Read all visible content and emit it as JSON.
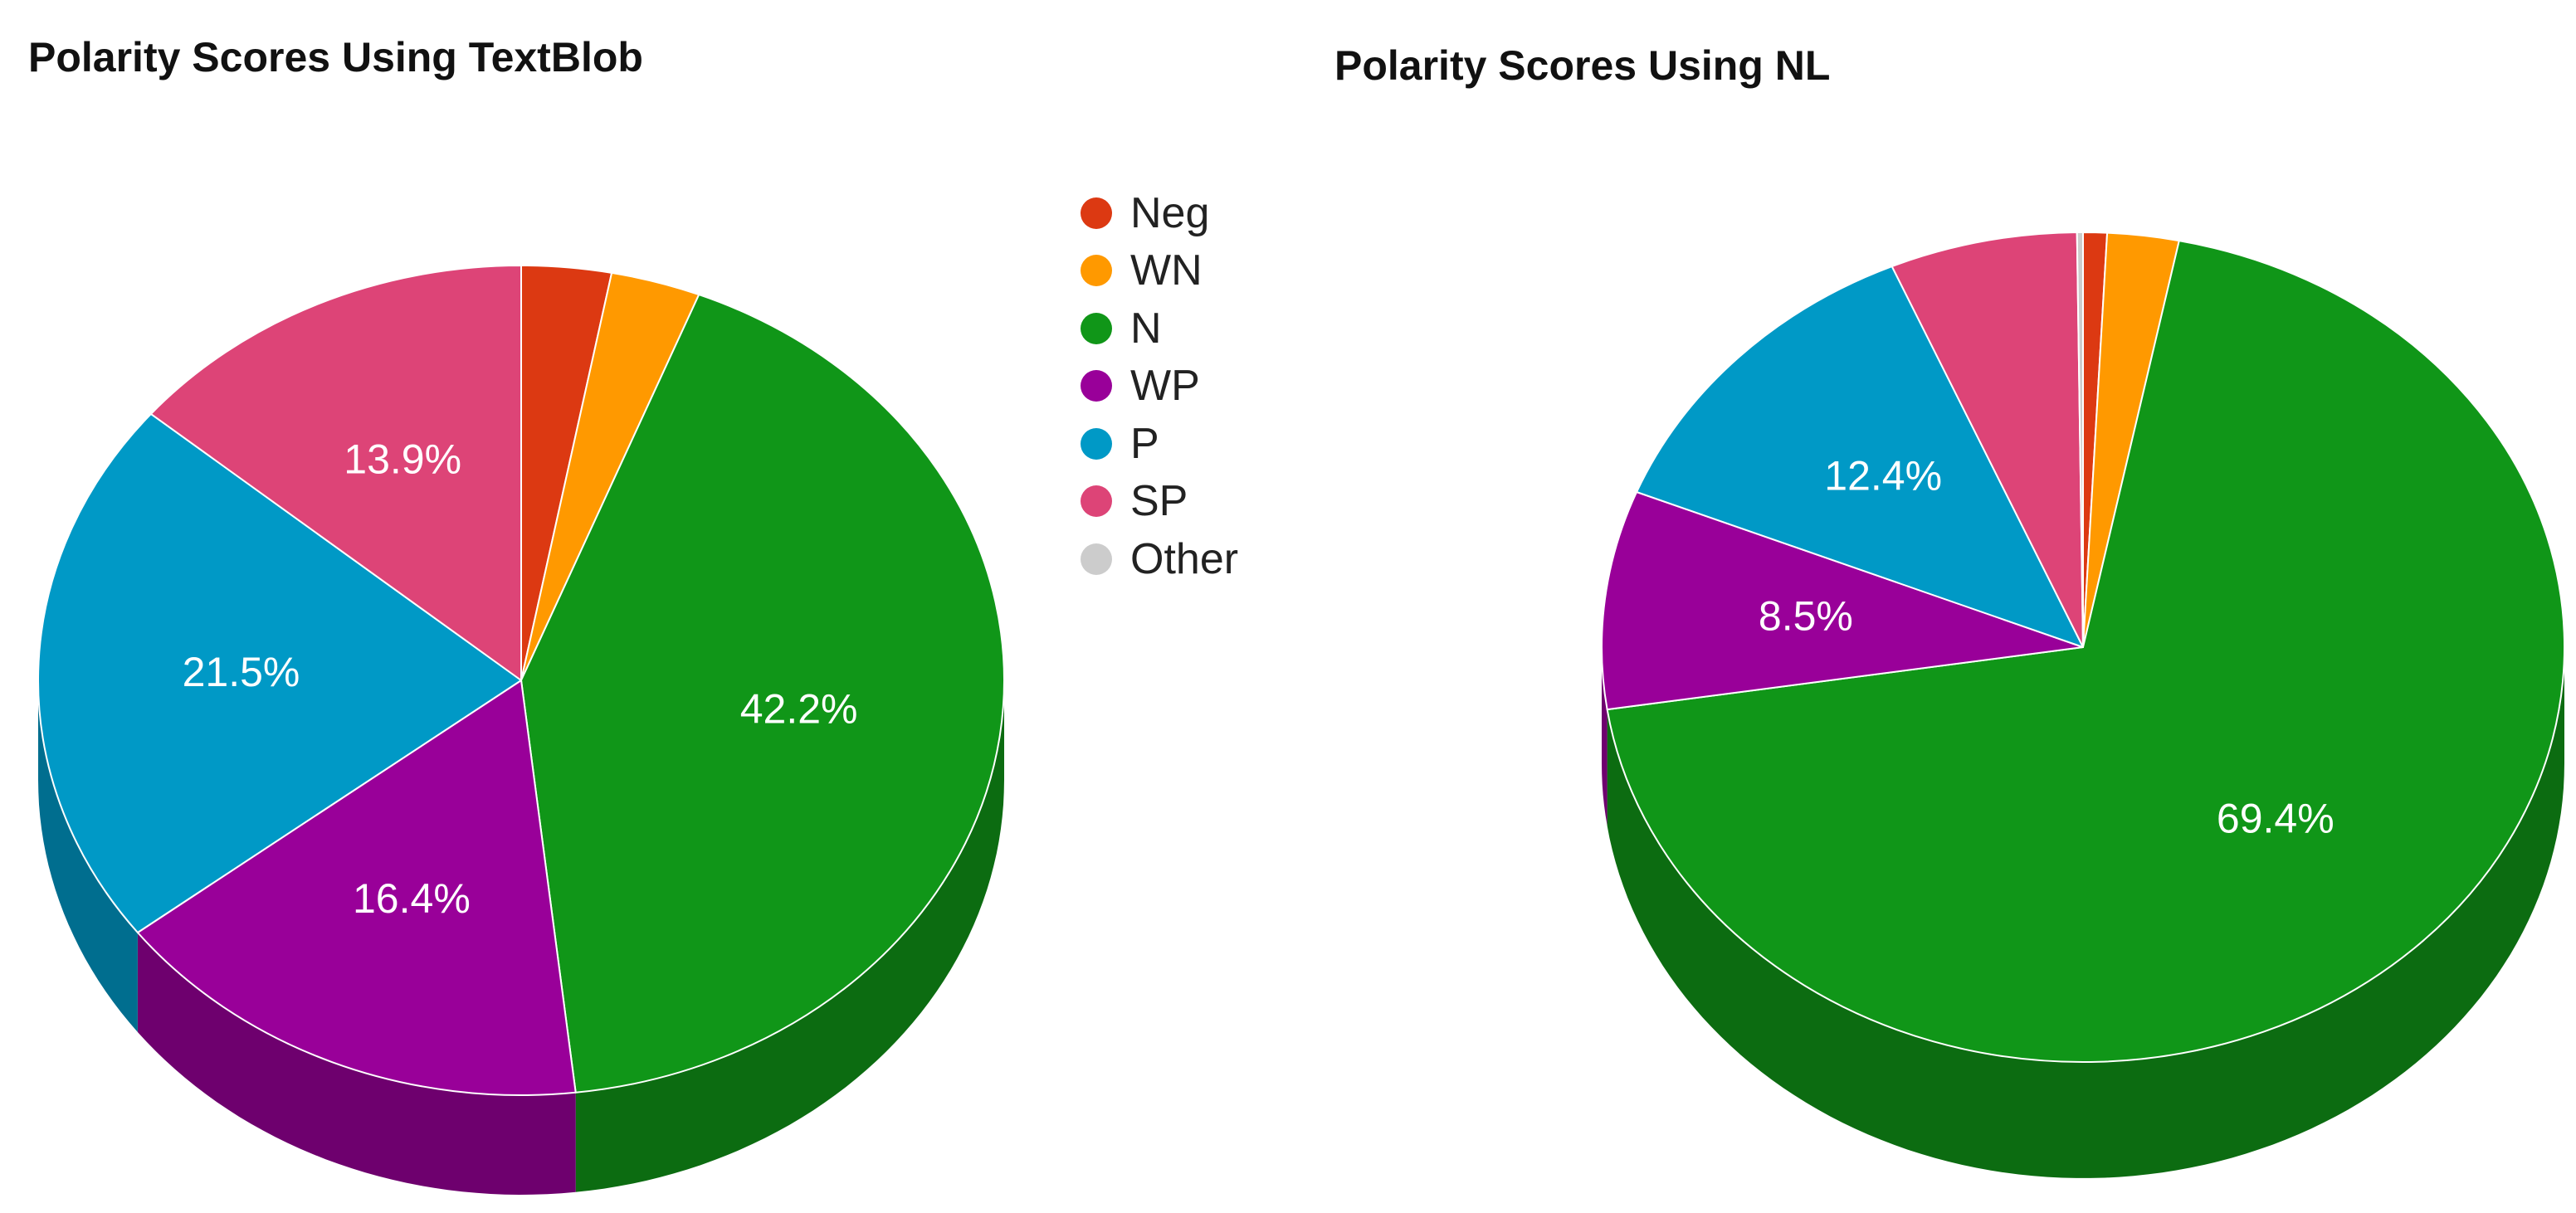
{
  "colors": {
    "Neg": "#dc3912",
    "WN": "#ff9900",
    "N": "#109618",
    "WP": "#990099",
    "P": "#0099c6",
    "SP": "#dd4477",
    "Other": "#cccccc"
  },
  "legend": {
    "items": [
      {
        "label": "Neg",
        "color": "#dc3912"
      },
      {
        "label": "WN",
        "color": "#ff9900"
      },
      {
        "label": "N",
        "color": "#109618"
      },
      {
        "label": "WP",
        "color": "#990099"
      },
      {
        "label": "P",
        "color": "#0099c6"
      },
      {
        "label": "SP",
        "color": "#dd4477"
      },
      {
        "label": "Other",
        "color": "#cccccc"
      }
    ]
  },
  "chart_data": [
    {
      "type": "pie",
      "title": "Polarity Scores Using TextBlob",
      "categories": [
        "Neg",
        "WN",
        "N",
        "WP",
        "P",
        "SP",
        "Other"
      ],
      "values": [
        3.0,
        3.0,
        42.2,
        16.4,
        21.5,
        13.9,
        0
      ],
      "data_labels": [
        "",
        "",
        "42.2%",
        "16.4%",
        "21.5%",
        "13.9%",
        ""
      ],
      "legend": "right",
      "style": "3d"
    },
    {
      "type": "pie",
      "title": "Polarity Scores Using NL",
      "categories": [
        "Neg",
        "WN",
        "N",
        "WP",
        "P",
        "SP",
        "Other"
      ],
      "values": [
        0.8,
        2.4,
        69.4,
        8.5,
        12.4,
        6.3,
        0.2
      ],
      "data_labels": [
        "",
        "",
        "69.4%",
        "8.5%",
        "12.4%",
        "",
        ""
      ],
      "legend": "left",
      "style": "3d"
    }
  ]
}
